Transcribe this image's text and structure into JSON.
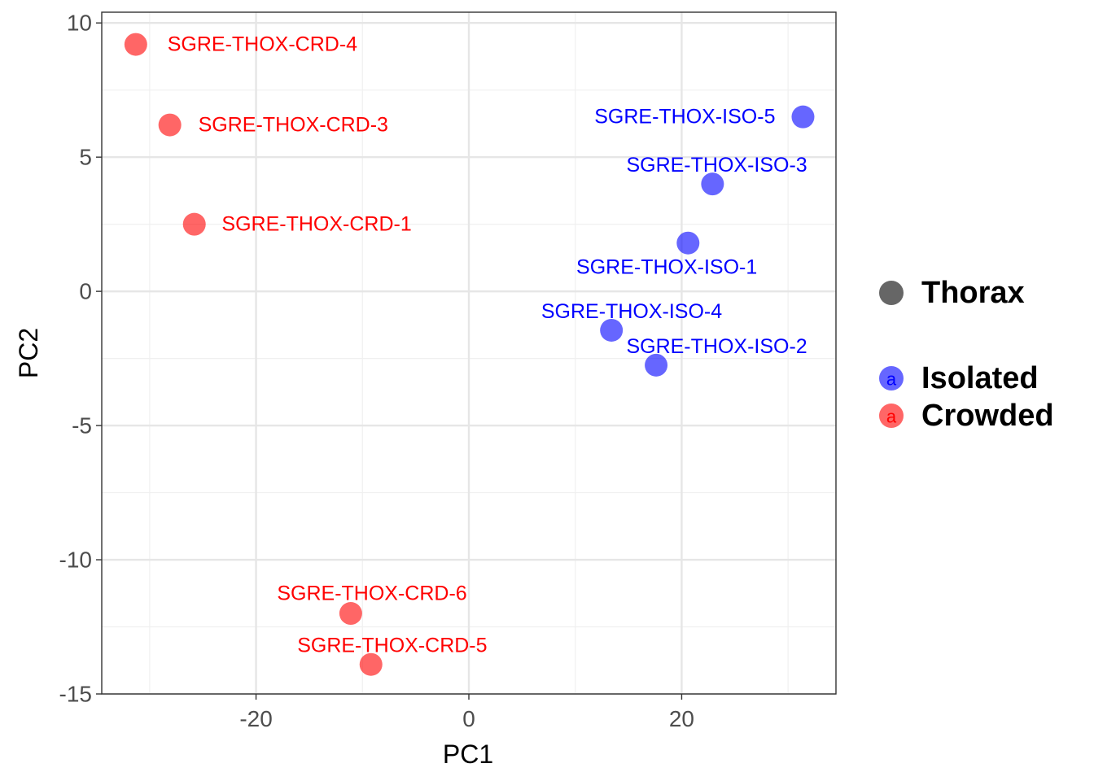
{
  "chart_data": {
    "type": "scatter",
    "xlabel": "PC1",
    "ylabel": "PC2",
    "xlim": [
      -34.5,
      34.5
    ],
    "ylim": [
      -15,
      10.4
    ],
    "x_ticks": [
      -20,
      0,
      20
    ],
    "x_tick_labels": [
      "-20",
      "0",
      "20"
    ],
    "x_minor_ticks": [
      -30,
      -10,
      10,
      30
    ],
    "y_ticks": [
      10,
      5,
      0,
      -5,
      -10,
      -15
    ],
    "y_tick_labels": [
      "10",
      "5",
      "0",
      "-5",
      "-10",
      "-15"
    ],
    "y_minor_ticks": [
      7.5,
      2.5,
      -2.5,
      -7.5,
      -12.5
    ],
    "grid": true,
    "legend_position": "right",
    "colors": {
      "Isolated": "#0000ff",
      "Crowded": "#ff0000",
      "point_alpha": 0.6,
      "shape_key": "#666666"
    },
    "legend": {
      "shape_items": [
        {
          "label": "Thorax"
        }
      ],
      "color_items": [
        {
          "label": "Isolated",
          "glyph": "a",
          "color": "#0000ff"
        },
        {
          "label": "Crowded",
          "glyph": "a",
          "color": "#ff0000"
        }
      ]
    },
    "series": [
      {
        "name": "Isolated",
        "points": [
          {
            "label": "SGRE-THOX-ISO-5",
            "x": 31.4,
            "y": 6.5,
            "label_x": 20.3,
            "label_y": 6.5
          },
          {
            "label": "SGRE-THOX-ISO-3",
            "x": 22.9,
            "y": 4.0,
            "label_x": 23.3,
            "label_y": 4.7
          },
          {
            "label": "SGRE-THOX-ISO-1",
            "x": 20.6,
            "y": 1.8,
            "label_x": 18.6,
            "label_y": 0.9
          },
          {
            "label": "SGRE-THOX-ISO-4",
            "x": 13.4,
            "y": -1.45,
            "label_x": 15.3,
            "label_y": -0.75
          },
          {
            "label": "SGRE-THOX-ISO-2",
            "x": 17.6,
            "y": -2.75,
            "label_x": 23.3,
            "label_y": -2.05
          }
        ]
      },
      {
        "name": "Crowded",
        "points": [
          {
            "label": "SGRE-THOX-CRD-4",
            "x": -31.3,
            "y": 9.2,
            "label_x": -19.4,
            "label_y": 9.2
          },
          {
            "label": "SGRE-THOX-CRD-3",
            "x": -28.1,
            "y": 6.2,
            "label_x": -16.5,
            "label_y": 6.2
          },
          {
            "label": "SGRE-THOX-CRD-1",
            "x": -25.8,
            "y": 2.5,
            "label_x": -14.3,
            "label_y": 2.5
          },
          {
            "label": "SGRE-THOX-CRD-6",
            "x": -11.1,
            "y": -12.0,
            "label_x": -9.1,
            "label_y": -11.25
          },
          {
            "label": "SGRE-THOX-CRD-5",
            "x": -9.2,
            "y": -13.9,
            "label_x": -7.2,
            "label_y": -13.2
          }
        ]
      }
    ]
  }
}
